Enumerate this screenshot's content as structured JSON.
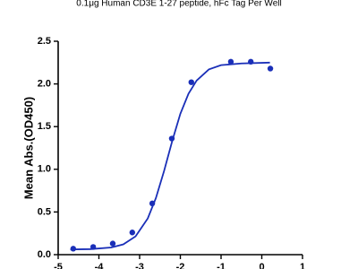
{
  "chart_data": {
    "type": "scatter",
    "title": "0.1μg Human CD3E 1-27 peptide, hFc Tag Per Well",
    "y_label": "Mean Abs.(OD450)",
    "xlim": [
      -5,
      1
    ],
    "xticks": [
      -5,
      -4,
      -3,
      -2,
      -1,
      0,
      1
    ],
    "ylim": [
      0,
      2.5
    ],
    "yticks": [
      {
        "value": 0,
        "label": "0.0"
      },
      {
        "value": 0.5,
        "label": "0.5"
      },
      {
        "value": 1,
        "label": "1.0"
      },
      {
        "value": 1.5,
        "label": "1.5"
      },
      {
        "value": 2,
        "label": "2.0"
      },
      {
        "value": 2.5,
        "label": "2.5"
      }
    ],
    "series": [
      {
        "mode": "markers",
        "color": "#1a2fb8",
        "x": [
          -4.63,
          -4.14,
          -3.66,
          -3.18,
          -2.69,
          -2.21,
          -1.73,
          -0.76,
          -0.27,
          0.21
        ],
        "values": [
          0.07,
          0.09,
          0.13,
          0.26,
          0.6,
          1.36,
          2.02,
          2.26,
          2.26,
          2.18
        ]
      },
      {
        "mode": "line",
        "color": "#1a2fb8",
        "x": [
          -4.7,
          -4.2,
          -3.7,
          -3.4,
          -3.1,
          -2.8,
          -2.6,
          -2.4,
          -2.2,
          -2.0,
          -1.8,
          -1.6,
          -1.3,
          -1.0,
          -0.5,
          0.2
        ],
        "values": [
          0.061,
          0.065,
          0.084,
          0.121,
          0.214,
          0.424,
          0.663,
          0.98,
          1.33,
          1.65,
          1.885,
          2.04,
          2.17,
          2.22,
          2.24,
          2.25
        ]
      }
    ]
  }
}
